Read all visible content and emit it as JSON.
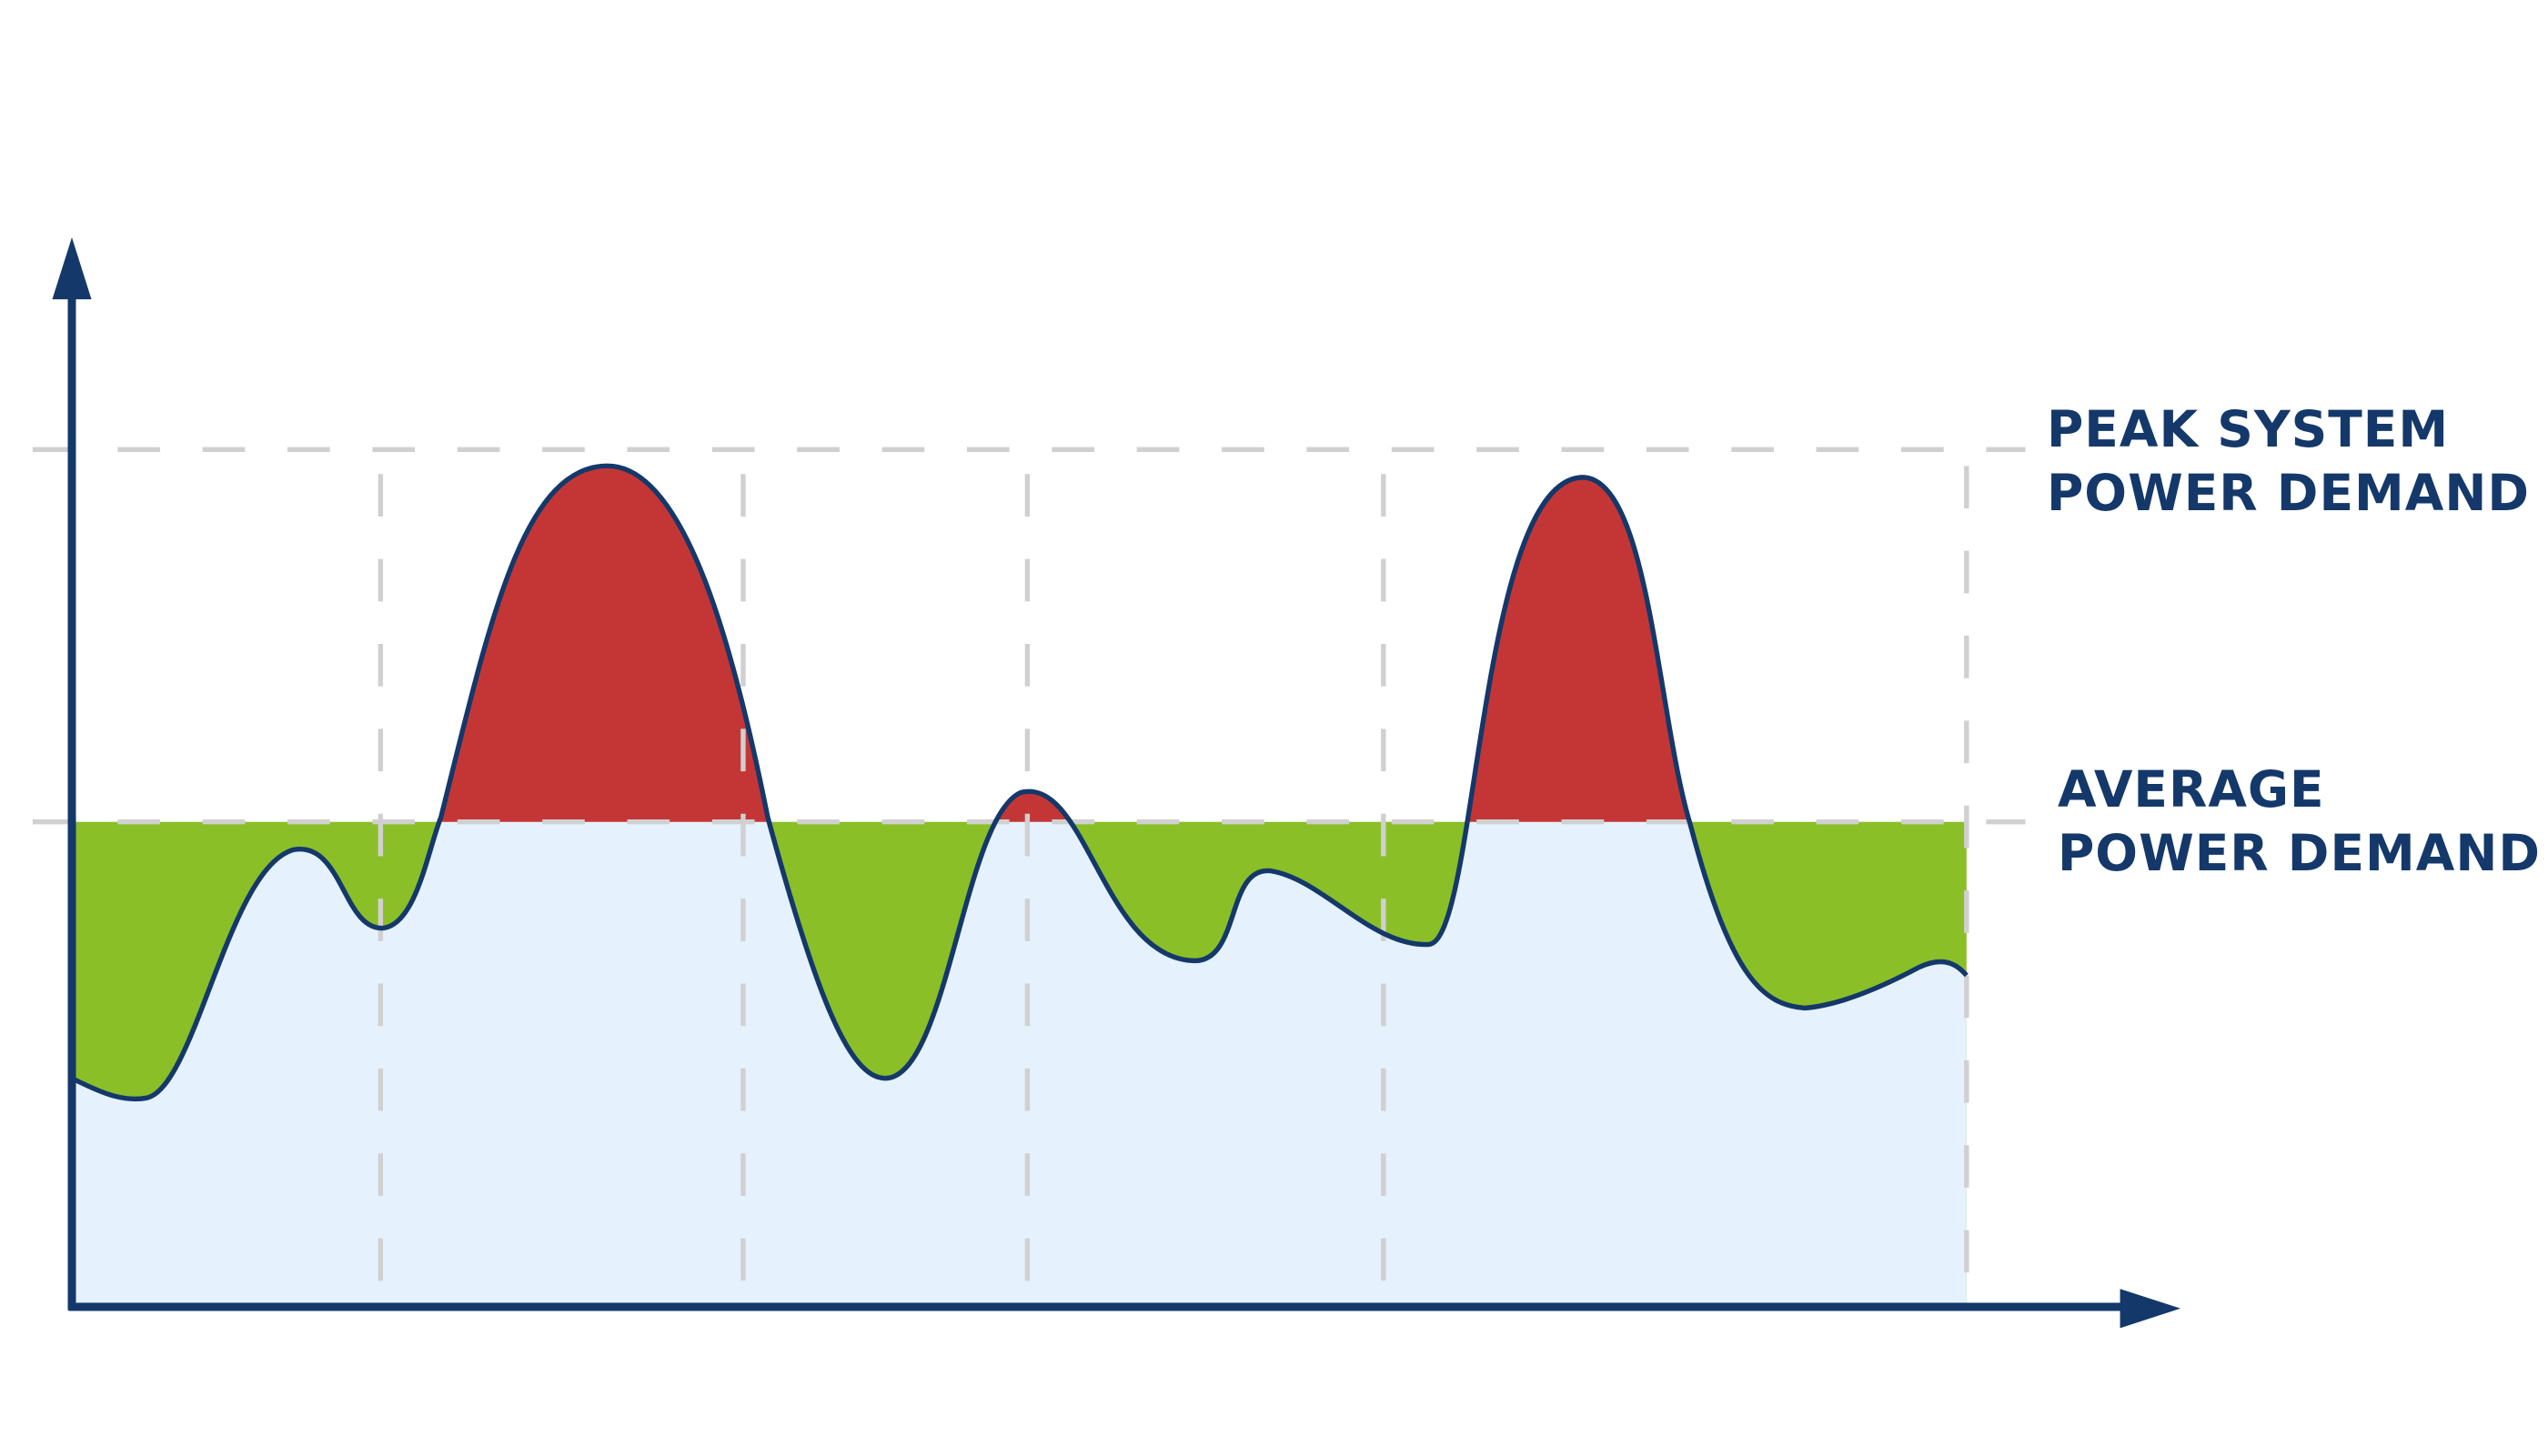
{
  "labels": {
    "peak": [
      "PEAK SYSTEM",
      "POWER DEMAND"
    ],
    "average": [
      "AVERAGE",
      "POWER DEMAND"
    ]
  },
  "colors": {
    "axis": "#14386a",
    "curve": "#14386a",
    "above_average": "#c43636",
    "below_average": "#8abf28",
    "base_area": "#e5f1fc",
    "gridlines": "#d0d0d0",
    "text": "#14386a"
  },
  "legend": {
    "peak_line": "dashed line at peak system power demand",
    "average_line": "dashed line at average power demand"
  }
}
